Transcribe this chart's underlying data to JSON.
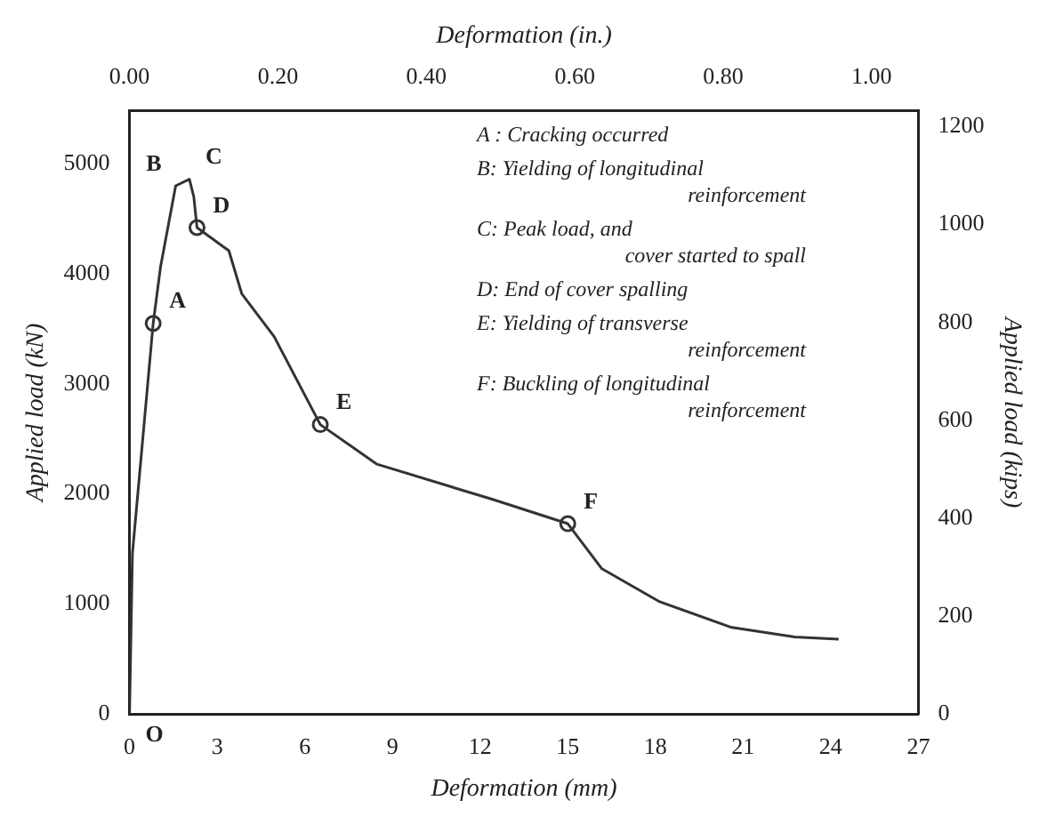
{
  "chart_data": {
    "type": "line",
    "xlabel": "Deformation (mm)",
    "ylabel": "Applied load (kN)",
    "y2label": "Applied load (kips)",
    "x2label": "Deformation (in.)",
    "xlim": [
      0,
      27
    ],
    "xticks": [
      0,
      3,
      6,
      9,
      12,
      15,
      18,
      21,
      24,
      27
    ],
    "ylim": [
      0,
      5480
    ],
    "yticks": [
      0,
      1000,
      2000,
      3000,
      4000,
      5000
    ],
    "y2lim": [
      0,
      1232
    ],
    "y2ticks": [
      0,
      200,
      400,
      600,
      800,
      1000,
      1200
    ],
    "x2lim": [
      0,
      1.063
    ],
    "x2ticks": [
      {
        "value": 0,
        "label": "0.00"
      },
      {
        "value": 0.2,
        "label": "0.20"
      },
      {
        "value": 0.4,
        "label": "0.40"
      },
      {
        "value": 0.6,
        "label": "0.60"
      },
      {
        "value": 0.8,
        "label": "0.80"
      },
      {
        "value": 1,
        "label": "1.00"
      }
    ],
    "grid": false,
    "legend": false,
    "marker": "none",
    "line_style": "solid",
    "series": [
      {
        "type": "line",
        "color": "#333333",
        "x": [
          0,
          0.1,
          0.81,
          1.06,
          1.58,
          2.05,
          2.2,
          2.31,
          3.4,
          3.84,
          4.95,
          6.53,
          8.47,
          12.43,
          15.0,
          16.17,
          18.15,
          20.57,
          22.77,
          24.27
        ],
        "values": [
          0,
          1460,
          3550,
          4060,
          4800,
          4860,
          4700,
          4420,
          4210,
          3820,
          3430,
          2630,
          2270,
          1950,
          1730,
          1320,
          1020,
          790,
          700,
          680
        ]
      },
      {
        "type": "scatter",
        "marker": "circle",
        "color": "#333333",
        "x": [
          0.81,
          2.31,
          6.53,
          15.0
        ],
        "values": [
          3550,
          4420,
          2630,
          1730
        ]
      }
    ],
    "annotations": [
      {
        "text": "O",
        "x": 0,
        "y": 0
      },
      {
        "text": "A",
        "x": 0.81,
        "y": 3550
      },
      {
        "text": "B",
        "x": 1.58,
        "y": 4800
      },
      {
        "text": "C",
        "x": 2.05,
        "y": 4860
      },
      {
        "text": "D",
        "x": 2.31,
        "y": 4420
      },
      {
        "text": "E",
        "x": 6.53,
        "y": 2630
      },
      {
        "text": "F",
        "x": 15.0,
        "y": 1730
      },
      "A : Cracking occurred",
      "B: Yielding of longitudinal\nreinforcement",
      "C: Peak load, and\ncover started to spall",
      "D: End of cover spalling",
      "E: Yielding of transverse\nreinforcement",
      "F: Buckling of longitudinal\nreinforcement"
    ]
  }
}
